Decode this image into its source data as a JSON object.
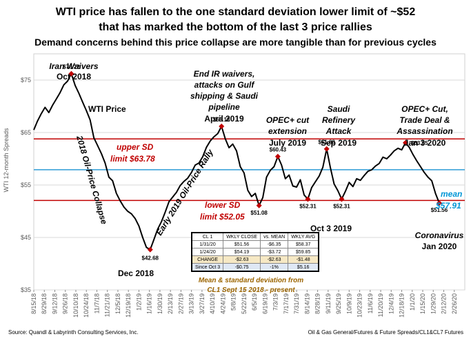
{
  "title": {
    "line1": "WTI price has fallen to the one standard deviation lower limit of ~$52",
    "line2": "that has marked the bottom of the last 3 price rallies",
    "line3": "Demand concerns behind this price collapse are more tangible than for previous cycles"
  },
  "chart_data": {
    "type": "line",
    "series_name": "WTI Price",
    "ylabel": "WTI 12-month Spreads",
    "ylim": [
      35,
      80
    ],
    "yticks": [
      35,
      45,
      55,
      65,
      75
    ],
    "ytick_labels": [
      "$35",
      "$45",
      "$55",
      "$65",
      "$75"
    ],
    "xlim": [
      0,
      574
    ],
    "xtick_days": [
      0,
      14,
      28,
      42,
      56,
      70,
      84,
      98,
      112,
      126,
      140,
      154,
      168,
      182,
      196,
      210,
      224,
      238,
      252,
      266,
      280,
      294,
      308,
      322,
      336,
      350,
      364,
      378,
      392,
      406,
      420,
      434,
      448,
      462,
      476,
      490,
      504,
      518,
      532,
      546,
      560
    ],
    "xtick_labels": [
      "8/15/18",
      "8/29/18",
      "9/12/18",
      "9/26/18",
      "10/10/18",
      "10/24/18",
      "11/7/18",
      "11/21/18",
      "12/5/18",
      "12/19/18",
      "1/2/19",
      "1/16/19",
      "1/30/19",
      "2/13/19",
      "2/27/19",
      "3/13/19",
      "3/27/19",
      "4/10/19",
      "4/24/19",
      "5/8/19",
      "5/22/19",
      "6/5/19",
      "6/19/19",
      "7/3/19",
      "7/17/19",
      "7/31/19",
      "8/14/19",
      "8/28/19",
      "9/11/19",
      "9/25/19",
      "10/9/19",
      "10/23/19",
      "11/6/19",
      "11/20/19",
      "12/4/19",
      "12/18/19",
      "1/1/20",
      "1/15/20",
      "1/29/20",
      "2/12/20",
      "2/26/20"
    ],
    "x_day": [
      0,
      5,
      10,
      15,
      20,
      25,
      30,
      35,
      40,
      45,
      50,
      55,
      60,
      65,
      70,
      75,
      80,
      85,
      90,
      95,
      100,
      105,
      110,
      115,
      120,
      125,
      130,
      135,
      140,
      145,
      150,
      155,
      160,
      165,
      170,
      175,
      180,
      185,
      190,
      195,
      200,
      205,
      210,
      215,
      220,
      225,
      230,
      235,
      240,
      245,
      250,
      255,
      260,
      265,
      270,
      275,
      280,
      285,
      290,
      295,
      300,
      305,
      310,
      315,
      320,
      325,
      330,
      335,
      340,
      345,
      350,
      355,
      360,
      365,
      370,
      375,
      380,
      385,
      390,
      395,
      400,
      405,
      410,
      415,
      420,
      425,
      430,
      435,
      440,
      445,
      450,
      455,
      460,
      465,
      470,
      475,
      480,
      485,
      490,
      495,
      500,
      505,
      510,
      515,
      520,
      525,
      530,
      535,
      540
    ],
    "values": [
      65.5,
      67.2,
      68.6,
      69.8,
      68.8,
      70.2,
      71.4,
      72.6,
      74.1,
      74.8,
      76.22,
      74.0,
      72.5,
      70.8,
      69.2,
      67.4,
      64.0,
      62.5,
      61.0,
      59.2,
      56.5,
      55.8,
      53.4,
      52.0,
      50.8,
      50.0,
      49.5,
      48.6,
      47.2,
      45.0,
      43.1,
      42.68,
      44.6,
      46.6,
      48.0,
      49.8,
      51.8,
      52.7,
      53.6,
      54.9,
      55.7,
      56.3,
      57.4,
      58.8,
      59.2,
      60.4,
      62.2,
      63.4,
      64.2,
      64.8,
      66.18,
      63.8,
      62.1,
      62.8,
      61.5,
      58.5,
      57.3,
      54.0,
      52.8,
      53.4,
      51.08,
      52.6,
      56.5,
      57.8,
      58.5,
      60.43,
      58.8,
      56.2,
      56.9,
      54.8,
      54.6,
      56.0,
      53.1,
      52.31,
      54.5,
      55.6,
      56.7,
      58.4,
      61.88,
      58.3,
      55.2,
      53.9,
      52.31,
      53.8,
      55.5,
      54.7,
      56.2,
      55.9,
      56.8,
      57.6,
      57.9,
      58.6,
      59.1,
      60.3,
      60.0,
      60.7,
      61.5,
      62.0,
      61.7,
      63.05,
      62.2,
      60.8,
      59.6,
      58.5,
      57.4,
      56.5,
      55.8,
      53.4,
      51.56
    ],
    "upper_sd": 63.78,
    "mean": 57.91,
    "lower_sd": 52.05,
    "markers": [
      {
        "day": 50,
        "value": 76.22,
        "label": "$76.22"
      },
      {
        "day": 155,
        "value": 42.68,
        "label": "$42.68"
      },
      {
        "day": 250,
        "value": 66.18,
        "label": "$66.18"
      },
      {
        "day": 300,
        "value": 51.08,
        "label": "$51.08"
      },
      {
        "day": 325,
        "value": 60.43,
        "label": "$60.43"
      },
      {
        "day": 365,
        "value": 52.31,
        "label": "$52.31"
      },
      {
        "day": 390,
        "value": 61.88,
        "label": "$61.88"
      },
      {
        "day": 410,
        "value": 52.31,
        "label": "$52.31"
      },
      {
        "day": 495,
        "value": 63.05,
        "label": "$63.05"
      },
      {
        "day": 540,
        "value": 51.56,
        "label": "$51.56"
      }
    ]
  },
  "lines": {
    "upper": "upper SD",
    "upper_val": "limit $63.78",
    "mean": "mean",
    "mean_val": "$57.91",
    "lower": "lower SD",
    "lower_val": "limit $52.05"
  },
  "annotations": {
    "series_label": "WTI Price",
    "iran1": "Iran Waivers",
    "iran2": "Oct 2018",
    "end_ir1": "End IR waivers,",
    "end_ir2": "attacks on Gulf",
    "end_ir3": "shipping & Saudi",
    "end_ir4": "pipeline",
    "end_ir5": "April 2019",
    "opec1": "OPEC+ cut",
    "opec2": "extension",
    "opec3": "July 2019",
    "saudi1": "Saudi",
    "saudi2": "Refinery",
    "saudi3": "Attack",
    "saudi4": "Sep 2019",
    "trade1": "OPEC+ Cut,",
    "trade2": "Trade Deal &",
    "trade3": "Assassination",
    "trade4": "Jan 3 2020",
    "dec2018": "Dec 2018",
    "oct2019": "Oct 3 2019",
    "corona1": "Coronavirus",
    "corona2": "Jan 2020",
    "collapse": "2018 Oil-Price Collapse",
    "rally": "Early 2019 Oil-Price Rally",
    "method1": "Mean & standard deviation from",
    "method2": "CL1 Sept 15 2018 - present"
  },
  "table": {
    "headers": [
      "CL 1",
      "WKLY CLOSE",
      "vs. MEAN",
      "WKLY AVG"
    ],
    "rows": [
      [
        "1/31/20",
        "$51.56",
        "-$6.35",
        "$58.37"
      ],
      [
        "1/24/20",
        "$54.19",
        "-$3.72",
        "$59.85"
      ],
      [
        "CHANGE",
        "-$2.63",
        "-$2.63",
        "-$1.48"
      ],
      [
        "Since Oct 3",
        "-$0.75",
        "-1%",
        "$5.16"
      ]
    ]
  },
  "footer": {
    "source": "Source: Quandl & Labyrinth Consulting Services, Inc.",
    "path": "Oil & Gas General/Futures & Future Spreads/CL1&CL7 Futures"
  },
  "colors": {
    "price_line": "#000000",
    "marker": "#c00000",
    "sd_line": "#c00000",
    "mean_line": "#2e9bd6",
    "grid": "#d9d9d9"
  }
}
